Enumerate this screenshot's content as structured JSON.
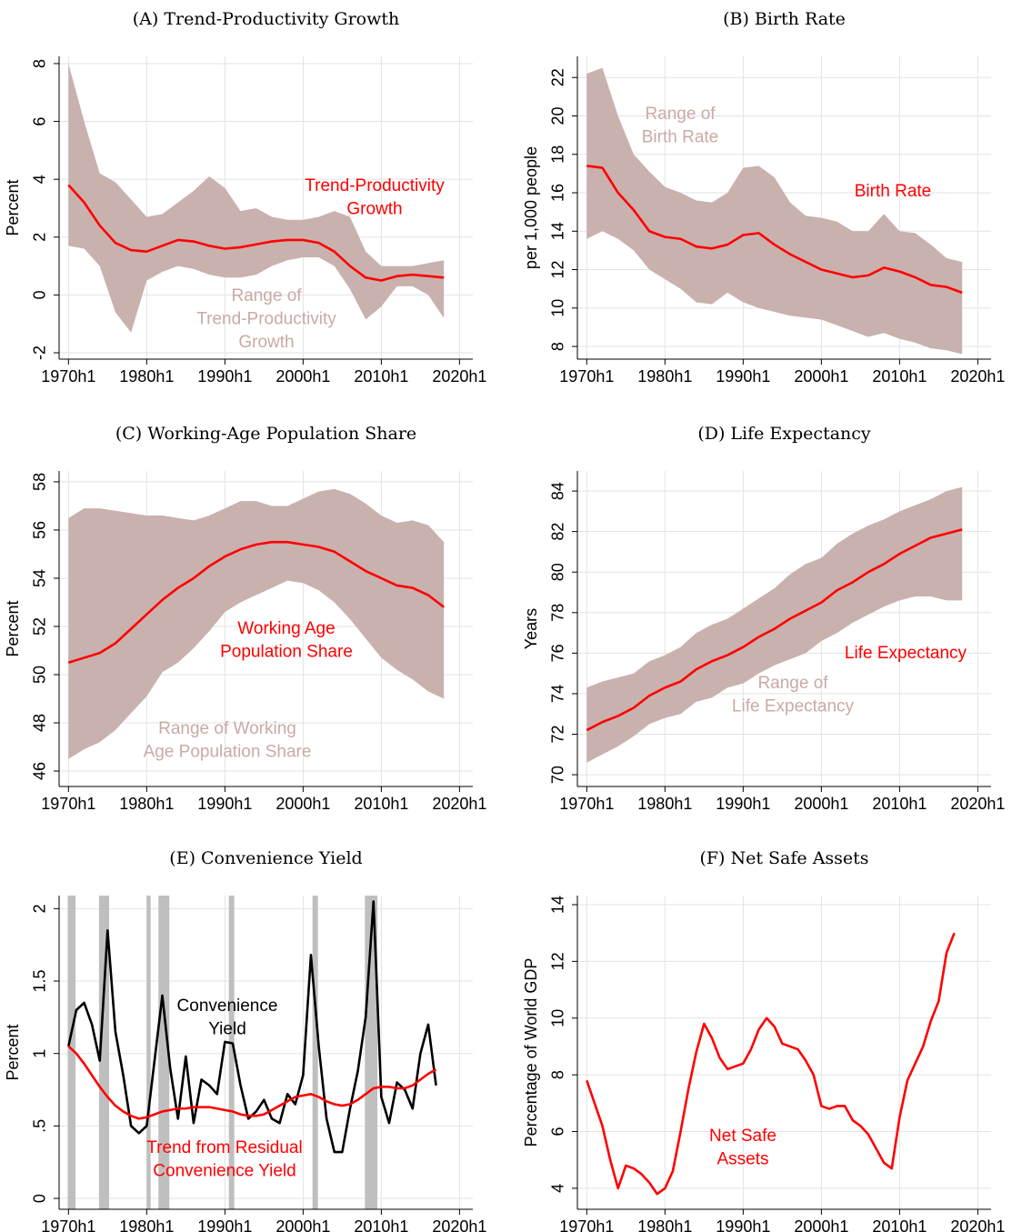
{
  "chart_data": [
    {
      "type": "band",
      "title": "(A) Trend-Productivity Growth",
      "ylabel": "Percent",
      "x": [
        1970,
        1972,
        1974,
        1976,
        1978,
        1980,
        1982,
        1984,
        1986,
        1988,
        1990,
        1992,
        1994,
        1996,
        1998,
        2000,
        2002,
        2004,
        2006,
        2008,
        2010,
        2012,
        2014,
        2016,
        2018
      ],
      "xlim": [
        1968.8,
        2021.7
      ],
      "xticks": [
        {
          "value": 1970,
          "label": "1970h1"
        },
        {
          "value": 1980,
          "label": "1980h1"
        },
        {
          "value": 1990,
          "label": "1990h1"
        },
        {
          "value": 2000,
          "label": "2000h1"
        },
        {
          "value": 2010,
          "label": "2010h1"
        },
        {
          "value": 2020,
          "label": "2020h1"
        }
      ],
      "ylim": [
        -2.22,
        8.25
      ],
      "yticks": [
        {
          "value": -2,
          "label": "-2"
        },
        0,
        2,
        4,
        6,
        8
      ],
      "grid": true,
      "band": {
        "color": "#c9b1ae",
        "upper": [
          8.0,
          6.0,
          4.2,
          3.9,
          3.3,
          2.7,
          2.8,
          3.2,
          3.6,
          4.1,
          3.7,
          2.9,
          3.0,
          2.7,
          2.6,
          2.6,
          2.7,
          2.9,
          2.7,
          1.5,
          1.0,
          1.0,
          1.0,
          1.1,
          1.2
        ],
        "lower": [
          1.7,
          1.6,
          1.0,
          -0.6,
          -1.3,
          0.5,
          0.8,
          1.0,
          0.9,
          0.7,
          0.6,
          0.6,
          0.7,
          1.0,
          1.2,
          1.3,
          1.3,
          1.0,
          0.2,
          -0.85,
          -0.4,
          0.3,
          0.3,
          0.0,
          -0.8
        ]
      },
      "series": [
        {
          "color": "#ff0000",
          "values": [
            3.8,
            3.2,
            2.4,
            1.8,
            1.55,
            1.5,
            1.7,
            1.9,
            1.85,
            1.7,
            1.6,
            1.65,
            1.75,
            1.85,
            1.9,
            1.9,
            1.8,
            1.5,
            1.0,
            0.6,
            0.5,
            0.65,
            0.7,
            0.65,
            0.6
          ]
        }
      ],
      "annotations": [
        {
          "color": "#ff0000",
          "lines": [
            "Trend-Productivity",
            "Growth"
          ]
        },
        {
          "color": "#c9aaa6",
          "lines": [
            "Range of",
            "Trend-Productivity",
            "Growth"
          ]
        }
      ]
    },
    {
      "type": "band",
      "title": "(B) Birth Rate",
      "ylabel": "per 1,000 people",
      "x": [
        1970,
        1972,
        1974,
        1976,
        1978,
        1980,
        1982,
        1984,
        1986,
        1988,
        1990,
        1992,
        1994,
        1996,
        1998,
        2000,
        2002,
        2004,
        2006,
        2008,
        2010,
        2012,
        2014,
        2016,
        2018
      ],
      "xlim": [
        1968.8,
        2021.7
      ],
      "xticks": [
        {
          "value": 1970,
          "label": "1970h1"
        },
        {
          "value": 1980,
          "label": "1980h1"
        },
        {
          "value": 1990,
          "label": "1990h1"
        },
        {
          "value": 2000,
          "label": "2000h1"
        },
        {
          "value": 2010,
          "label": "2010h1"
        },
        {
          "value": 2020,
          "label": "2020h1"
        }
      ],
      "ylim": [
        7.34,
        23.1
      ],
      "yticks": [
        8,
        10,
        12,
        14,
        16,
        18,
        20,
        22
      ],
      "grid": true,
      "band": {
        "color": "#c9b1ae",
        "upper": [
          22.2,
          22.5,
          20.0,
          18.0,
          17.1,
          16.3,
          16.0,
          15.6,
          15.5,
          16.0,
          17.3,
          17.4,
          16.8,
          15.5,
          14.8,
          14.7,
          14.5,
          14.0,
          14.0,
          14.9,
          14.0,
          13.9,
          13.3,
          12.6,
          12.4
        ],
        "lower": [
          13.6,
          14.0,
          13.6,
          13.0,
          12.0,
          11.5,
          11.0,
          10.3,
          10.2,
          10.8,
          10.3,
          10.0,
          9.8,
          9.6,
          9.5,
          9.4,
          9.1,
          8.8,
          8.5,
          8.7,
          8.4,
          8.2,
          7.9,
          7.8,
          7.6
        ]
      },
      "series": [
        {
          "color": "#ff0000",
          "values": [
            17.4,
            17.3,
            16.0,
            15.1,
            14.0,
            13.7,
            13.6,
            13.2,
            13.1,
            13.3,
            13.8,
            13.9,
            13.3,
            12.8,
            12.4,
            12.0,
            11.8,
            11.6,
            11.7,
            12.1,
            11.9,
            11.6,
            11.2,
            11.1,
            10.8
          ]
        }
      ],
      "annotations": [
        {
          "color": "#c9aaa6",
          "lines": [
            "Range of",
            "Birth Rate"
          ]
        },
        {
          "color": "#ff0000",
          "lines": [
            "Birth Rate"
          ]
        }
      ]
    },
    {
      "type": "band",
      "title": "(C) Working-Age Population Share",
      "ylabel": "Percent",
      "x": [
        1970,
        1972,
        1974,
        1976,
        1978,
        1980,
        1982,
        1984,
        1986,
        1988,
        1990,
        1992,
        1994,
        1996,
        1998,
        2000,
        2002,
        2004,
        2006,
        2008,
        2010,
        2012,
        2014,
        2016,
        2018
      ],
      "xlim": [
        1968.8,
        2021.7
      ],
      "xticks": [
        {
          "value": 1970,
          "label": "1970h1"
        },
        {
          "value": 1980,
          "label": "1980h1"
        },
        {
          "value": 1990,
          "label": "1990h1"
        },
        {
          "value": 2000,
          "label": "2000h1"
        },
        {
          "value": 2010,
          "label": "2010h1"
        },
        {
          "value": 2020,
          "label": "2020h1"
        }
      ],
      "ylim": [
        45.36,
        58.45
      ],
      "yticks": [
        46,
        48,
        50,
        52,
        54,
        56,
        58
      ],
      "grid": true,
      "band": {
        "color": "#c9b1ae",
        "upper": [
          56.5,
          56.9,
          56.9,
          56.8,
          56.7,
          56.6,
          56.6,
          56.5,
          56.4,
          56.6,
          56.9,
          57.2,
          57.2,
          57.0,
          57.0,
          57.3,
          57.6,
          57.7,
          57.5,
          57.1,
          56.6,
          56.3,
          56.4,
          56.2,
          55.5
        ],
        "lower": [
          46.5,
          46.9,
          47.2,
          47.7,
          48.4,
          49.1,
          50.1,
          50.5,
          51.1,
          51.8,
          52.6,
          53.0,
          53.3,
          53.6,
          53.9,
          53.8,
          53.5,
          53.0,
          52.3,
          51.5,
          50.7,
          50.2,
          49.8,
          49.3,
          49.0
        ]
      },
      "series": [
        {
          "color": "#ff0000",
          "values": [
            50.5,
            50.7,
            50.9,
            51.3,
            51.9,
            52.5,
            53.1,
            53.6,
            54.0,
            54.5,
            54.9,
            55.2,
            55.4,
            55.5,
            55.5,
            55.4,
            55.3,
            55.1,
            54.7,
            54.3,
            54.0,
            53.7,
            53.6,
            53.3,
            52.8
          ]
        }
      ],
      "annotations": [
        {
          "color": "#ff0000",
          "lines": [
            "Working Age",
            "Population Share"
          ]
        },
        {
          "color": "#c9aaa6",
          "lines": [
            "Range of Working",
            "Age Population Share"
          ]
        }
      ]
    },
    {
      "type": "band",
      "title": "(D) Life Expectancy",
      "ylabel": "Years",
      "x": [
        1970,
        1972,
        1974,
        1976,
        1978,
        1980,
        1982,
        1984,
        1986,
        1988,
        1990,
        1992,
        1994,
        1996,
        1998,
        2000,
        2002,
        2004,
        2006,
        2008,
        2010,
        2012,
        2014,
        2016,
        2018
      ],
      "xlim": [
        1968.8,
        2021.7
      ],
      "xticks": [
        {
          "value": 1970,
          "label": "1970h1"
        },
        {
          "value": 1980,
          "label": "1980h1"
        },
        {
          "value": 1990,
          "label": "1990h1"
        },
        {
          "value": 2000,
          "label": "2000h1"
        },
        {
          "value": 2010,
          "label": "2010h1"
        },
        {
          "value": 2020,
          "label": "2020h1"
        }
      ],
      "ylim": [
        69.42,
        84.99
      ],
      "yticks": [
        70,
        72,
        74,
        76,
        78,
        80,
        82,
        84
      ],
      "grid": true,
      "band": {
        "color": "#c9b1ae",
        "upper": [
          74.3,
          74.6,
          74.8,
          75.0,
          75.6,
          75.9,
          76.3,
          77.0,
          77.4,
          77.7,
          78.2,
          78.7,
          79.2,
          79.9,
          80.4,
          80.7,
          81.4,
          81.9,
          82.3,
          82.6,
          83.0,
          83.3,
          83.6,
          84.0,
          84.2
        ],
        "lower": [
          70.6,
          71.0,
          71.4,
          71.9,
          72.5,
          72.8,
          73.0,
          73.6,
          73.8,
          74.3,
          74.5,
          75.0,
          75.4,
          75.7,
          76.0,
          76.6,
          77.0,
          77.5,
          77.9,
          78.3,
          78.6,
          78.8,
          78.8,
          78.6,
          78.6
        ]
      },
      "series": [
        {
          "color": "#ff0000",
          "values": [
            72.2,
            72.6,
            72.9,
            73.3,
            73.9,
            74.3,
            74.6,
            75.2,
            75.6,
            75.9,
            76.3,
            76.8,
            77.2,
            77.7,
            78.1,
            78.5,
            79.1,
            79.5,
            80.0,
            80.4,
            80.9,
            81.3,
            81.7,
            81.9,
            82.1
          ]
        }
      ],
      "annotations": [
        {
          "color": "#ff0000",
          "lines": [
            "Life Expectancy"
          ]
        },
        {
          "color": "#c9aaa6",
          "lines": [
            "Range of",
            "Life Expectancy"
          ]
        }
      ]
    },
    {
      "type": "line",
      "title": "(E) Convenience Yield",
      "ylabel": "Percent",
      "x": [
        1970,
        1971,
        1972,
        1973,
        1974,
        1975,
        1976,
        1977,
        1978,
        1979,
        1980,
        1981,
        1982,
        1983,
        1984,
        1985,
        1986,
        1987,
        1988,
        1989,
        1990,
        1991,
        1992,
        1993,
        1994,
        1995,
        1996,
        1997,
        1998,
        1999,
        2000,
        2001,
        2002,
        2003,
        2004,
        2005,
        2006,
        2007,
        2008,
        2009,
        2010,
        2011,
        2012,
        2013,
        2014,
        2015,
        2016,
        2017
      ],
      "xlim": [
        1968.8,
        2021.7
      ],
      "xticks": [
        {
          "value": 1970,
          "label": "1970h1"
        },
        {
          "value": 1980,
          "label": "1980h1"
        },
        {
          "value": 1990,
          "label": "1990h1"
        },
        {
          "value": 2000,
          "label": "2000h1"
        },
        {
          "value": 2010,
          "label": "2010h1"
        },
        {
          "value": 2020,
          "label": "2020h1"
        }
      ],
      "ylim": [
        -0.075,
        2.09
      ],
      "yticks": [
        0,
        {
          "value": 0.5,
          "label": ".5"
        },
        1,
        1.5,
        2
      ],
      "grid": true,
      "shaded_periods": {
        "color": "#bfbfbf",
        "spans": [
          [
            1969.9,
            1970.9
          ],
          [
            1973.9,
            1975.2
          ],
          [
            1980.0,
            1980.5
          ],
          [
            1981.5,
            1982.9
          ],
          [
            1990.5,
            1991.2
          ],
          [
            2001.2,
            2001.9
          ],
          [
            2007.9,
            2009.5
          ]
        ]
      },
      "series": [
        {
          "color": "#000000",
          "values": [
            1.05,
            1.3,
            1.35,
            1.2,
            0.95,
            1.85,
            1.15,
            0.85,
            0.5,
            0.45,
            0.5,
            0.95,
            1.4,
            0.9,
            0.55,
            0.98,
            0.52,
            0.82,
            0.78,
            0.72,
            1.08,
            1.07,
            0.78,
            0.55,
            0.6,
            0.68,
            0.55,
            0.52,
            0.72,
            0.65,
            0.85,
            1.68,
            1.05,
            0.55,
            0.32,
            0.32,
            0.62,
            0.88,
            1.25,
            2.05,
            0.7,
            0.52,
            0.8,
            0.75,
            0.62,
            1.0,
            1.2,
            0.78
          ]
        },
        {
          "color": "#ff0000",
          "values": [
            1.05,
            1.0,
            0.93,
            0.85,
            0.77,
            0.7,
            0.64,
            0.6,
            0.57,
            0.55,
            0.56,
            0.58,
            0.6,
            0.61,
            0.62,
            0.62,
            0.63,
            0.63,
            0.63,
            0.62,
            0.61,
            0.6,
            0.58,
            0.57,
            0.57,
            0.58,
            0.61,
            0.64,
            0.67,
            0.7,
            0.71,
            0.72,
            0.7,
            0.67,
            0.65,
            0.64,
            0.65,
            0.68,
            0.72,
            0.76,
            0.77,
            0.77,
            0.76,
            0.76,
            0.78,
            0.82,
            0.86,
            0.89
          ]
        }
      ],
      "annotations": [
        {
          "color": "#000000",
          "lines": [
            "Convenience",
            "Yield"
          ]
        },
        {
          "color": "#ff0000",
          "lines": [
            "Trend from Residual",
            "Convenience Yield"
          ]
        }
      ]
    },
    {
      "type": "line",
      "title": "(F) Net Safe Assets",
      "ylabel": "Percentage of World GDP",
      "x": [
        1970,
        1971,
        1972,
        1973,
        1974,
        1975,
        1976,
        1977,
        1978,
        1979,
        1980,
        1981,
        1982,
        1983,
        1984,
        1985,
        1986,
        1987,
        1988,
        1989,
        1990,
        1991,
        1992,
        1993,
        1994,
        1995,
        1996,
        1997,
        1998,
        1999,
        2000,
        2001,
        2002,
        2003,
        2004,
        2005,
        2006,
        2007,
        2008,
        2009,
        2010,
        2011,
        2012,
        2013,
        2014,
        2015,
        2016,
        2017
      ],
      "xlim": [
        1968.8,
        2021.7
      ],
      "xticks": [
        {
          "value": 1970,
          "label": "1970h1"
        },
        {
          "value": 1980,
          "label": "1980h1"
        },
        {
          "value": 1990,
          "label": "1990h1"
        },
        {
          "value": 2000,
          "label": "2000h1"
        },
        {
          "value": 2010,
          "label": "2010h1"
        },
        {
          "value": 2020,
          "label": "2020h1"
        }
      ],
      "ylim": [
        3.26,
        14.32
      ],
      "yticks": [
        4,
        6,
        8,
        10,
        12,
        14
      ],
      "grid": true,
      "series": [
        {
          "color": "#ff0000",
          "values": [
            7.8,
            7.0,
            6.2,
            5.0,
            4.0,
            4.8,
            4.7,
            4.5,
            4.2,
            3.8,
            4.0,
            4.6,
            6.0,
            7.5,
            8.8,
            9.8,
            9.3,
            8.6,
            8.2,
            8.3,
            8.4,
            8.9,
            9.6,
            10.0,
            9.7,
            9.1,
            9.0,
            8.9,
            8.5,
            8.0,
            6.9,
            6.8,
            6.9,
            6.9,
            6.4,
            6.2,
            5.9,
            5.4,
            4.9,
            4.7,
            6.5,
            7.8,
            8.4,
            9.0,
            9.9,
            10.6,
            12.3,
            13.0
          ]
        }
      ],
      "annotations": [
        {
          "color": "#ff0000",
          "lines": [
            "Net Safe",
            "Assets"
          ]
        }
      ]
    }
  ]
}
